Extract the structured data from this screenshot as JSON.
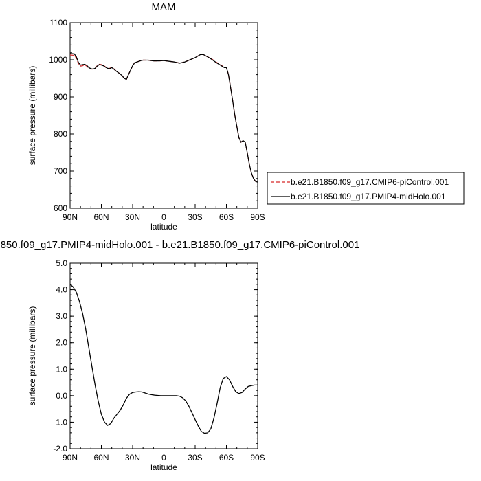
{
  "top_title": "MAM",
  "bottom_title": "850.f09_g17.PMIP4-midHolo.001 - b.e21.B1850.f09_g17.CMIP6-piControl.001",
  "legend": {
    "items": [
      {
        "label": "b.e21.B1850.f09_g17.CMIP6-piControl.001",
        "color": "#d62728",
        "style": "dashed"
      },
      {
        "label": "b.e21.B1850.f09_g17.PMIP4-midHolo.001",
        "color": "#000000",
        "style": "solid"
      }
    ]
  },
  "chart_data": [
    {
      "type": "line",
      "title": "MAM",
      "xlabel": "latitude",
      "ylabel": "surface pressure (millibars)",
      "xlim": [
        90,
        -90
      ],
      "ylim": [
        600,
        1100
      ],
      "x_ticks": [
        "90N",
        "60N",
        "30N",
        "0",
        "30S",
        "60S",
        "90S"
      ],
      "x_tick_values": [
        90,
        60,
        30,
        0,
        -30,
        -60,
        -90
      ],
      "y_ticks": [
        "600",
        "700",
        "800",
        "900",
        "1000",
        "1100"
      ],
      "y_tick_values": [
        600,
        700,
        800,
        900,
        1000,
        1100
      ],
      "series": [
        {
          "name": "b.e21.B1850.f09_g17.CMIP6-piControl.001",
          "color": "#d62728",
          "style": "dashed",
          "x": [
            90,
            86,
            84,
            82,
            80,
            78,
            76,
            74,
            72,
            70,
            68,
            66,
            64,
            62,
            60,
            58,
            56,
            54,
            52,
            50,
            48,
            46,
            44,
            42,
            40,
            38,
            36,
            34,
            32,
            30,
            28,
            26,
            24,
            22,
            20,
            15,
            10,
            5,
            0,
            -5,
            -10,
            -15,
            -20,
            -25,
            -30,
            -35,
            -38,
            -42,
            -46,
            -50,
            -54,
            -58,
            -60,
            -62,
            -64,
            -66,
            -68,
            -70,
            -72,
            -74,
            -76,
            -78,
            -80,
            -82,
            -84,
            -86,
            -88,
            -90
          ],
          "y": [
            1013,
            1012,
            1005,
            990,
            983,
            984,
            986,
            983,
            977,
            975,
            975,
            977,
            984,
            988,
            987,
            985,
            981,
            978,
            977,
            980,
            976,
            970,
            966,
            962,
            957,
            950,
            947,
            960,
            972,
            984,
            992,
            994,
            996,
            998,
            999,
            999,
            997,
            997,
            998,
            996,
            994,
            991,
            994,
            1000,
            1006,
            1014,
            1014,
            1008,
            1002,
            994,
            987,
            980,
            980,
            960,
            925,
            890,
            852,
            820,
            790,
            778,
            782,
            778,
            750,
            718,
            695,
            680,
            672,
            670
          ]
        },
        {
          "name": "b.e21.B1850.f09_g17.PMIP4-midHolo.001",
          "color": "#000000",
          "style": "solid",
          "x": [
            90,
            86,
            84,
            82,
            80,
            78,
            76,
            74,
            72,
            70,
            68,
            66,
            64,
            62,
            60,
            58,
            56,
            54,
            52,
            50,
            48,
            46,
            44,
            42,
            40,
            38,
            36,
            34,
            32,
            30,
            28,
            26,
            24,
            22,
            20,
            15,
            10,
            5,
            0,
            -5,
            -10,
            -15,
            -20,
            -25,
            -30,
            -35,
            -38,
            -42,
            -46,
            -50,
            -54,
            -58,
            -60,
            -62,
            -64,
            -66,
            -68,
            -70,
            -72,
            -74,
            -76,
            -78,
            -80,
            -82,
            -84,
            -86,
            -88,
            -90
          ],
          "y": [
            1017,
            1016,
            1008,
            993,
            986,
            987,
            988,
            985,
            979,
            976,
            975,
            977,
            983,
            987,
            986,
            984,
            980,
            977,
            976,
            979,
            975,
            970,
            966,
            962,
            957,
            950,
            947,
            960,
            972,
            984,
            992,
            994,
            996,
            998,
            999,
            999,
            997,
            997,
            998,
            996,
            994,
            991,
            994,
            1000,
            1006,
            1014,
            1014,
            1008,
            1001,
            993,
            986,
            979,
            979,
            960,
            925,
            890,
            852,
            820,
            790,
            778,
            782,
            778,
            750,
            718,
            695,
            680,
            672,
            670
          ]
        }
      ]
    },
    {
      "type": "line",
      "title": "850.f09_g17.PMIP4-midHolo.001 - b.e21.B1850.f09_g17.CMIP6-piControl.001",
      "xlabel": "latitude",
      "ylabel": "surface pressure (millibars)",
      "xlim": [
        90,
        -90
      ],
      "ylim": [
        -2.0,
        5.0
      ],
      "x_ticks": [
        "90N",
        "60N",
        "30N",
        "0",
        "30S",
        "60S",
        "90S"
      ],
      "x_tick_values": [
        90,
        60,
        30,
        0,
        -30,
        -60,
        -90
      ],
      "y_ticks": [
        "-2.0",
        "-1.0",
        "0.0",
        "1.0",
        "2.0",
        "3.0",
        "4.0",
        "5.0"
      ],
      "y_tick_values": [
        -2,
        -1,
        0,
        1,
        2,
        3,
        4,
        5
      ],
      "series": [
        {
          "name": "",
          "color": "#000000",
          "style": "solid",
          "x": [
            90,
            87,
            84,
            81,
            78,
            75,
            72,
            69,
            66,
            63,
            60,
            57,
            54,
            51,
            48,
            45,
            42,
            39,
            36,
            33,
            30,
            27,
            24,
            21,
            18,
            15,
            12,
            9,
            6,
            3,
            0,
            -3,
            -6,
            -9,
            -12,
            -15,
            -18,
            -21,
            -24,
            -27,
            -30,
            -33,
            -36,
            -39,
            -42,
            -45,
            -48,
            -51,
            -54,
            -57,
            -60,
            -63,
            -66,
            -69,
            -72,
            -75,
            -78,
            -81,
            -84,
            -87,
            -90
          ],
          "y": [
            4.2,
            4.1,
            3.9,
            3.55,
            3.1,
            2.5,
            1.8,
            1.1,
            0.4,
            -0.2,
            -0.7,
            -1.0,
            -1.12,
            -1.05,
            -0.85,
            -0.7,
            -0.55,
            -0.35,
            -0.1,
            0.05,
            0.12,
            0.14,
            0.15,
            0.14,
            0.1,
            0.06,
            0.04,
            0.02,
            0.01,
            0.0,
            0.0,
            0.0,
            0.0,
            0.0,
            0.0,
            -0.02,
            -0.08,
            -0.2,
            -0.4,
            -0.65,
            -0.9,
            -1.15,
            -1.35,
            -1.42,
            -1.4,
            -1.25,
            -0.85,
            -0.3,
            0.3,
            0.65,
            0.72,
            0.6,
            0.35,
            0.15,
            0.08,
            0.12,
            0.25,
            0.35,
            0.38,
            0.4,
            0.4
          ]
        }
      ]
    }
  ]
}
